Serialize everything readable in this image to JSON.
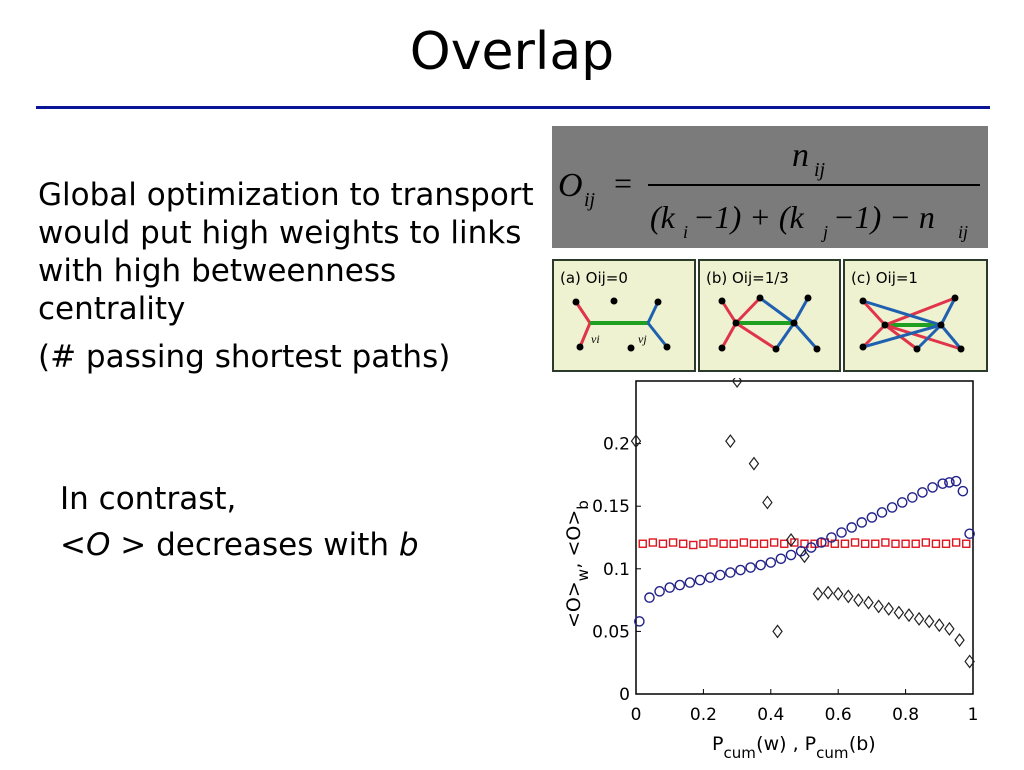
{
  "slide": {
    "title": "Overlap",
    "text": {
      "para1": "Global optimization to transport would put high weights to links with high betweenness centrality",
      "para2": "(# passing shortest paths)",
      "contrast": "In contrast,",
      "decreases_prefix": "<",
      "decreases_O": "O",
      "decreases_suffix": " > decreases with ",
      "decreases_b": "b"
    },
    "formula": {
      "lhs": "O",
      "lhs_sub": "ij",
      "eq": "=",
      "numerator": "n",
      "numerator_sub": "ij",
      "den_a": "(k",
      "den_a_sub": "i",
      "den_b": " −1) + (k",
      "den_b_sub": "j",
      "den_c": " −1) − n",
      "den_c_sub": "ij"
    },
    "panels": [
      {
        "label": "(a)  Oij=0",
        "vi": "vi",
        "vj": "vj"
      },
      {
        "label": "(b)  Oij=1/3"
      },
      {
        "label": "(c)  Oij=1"
      }
    ],
    "colors": {
      "rule": "#0a1496",
      "red_series": "#e0141e",
      "blue_series": "#22228a",
      "black_series": "#222222",
      "edge_red": "#e0344a",
      "edge_blue": "#2060b0",
      "edge_green": "#20a020"
    }
  },
  "chart_data": {
    "type": "scatter",
    "xlabel": "P_cum(w) , P_cum(b)",
    "ylabel": "<O>_w , <O>_b",
    "xlim": [
      0,
      1
    ],
    "ylim": [
      0,
      0.25
    ],
    "xticks": [
      "0",
      "0.2",
      "0.4",
      "0.6",
      "0.8",
      "1"
    ],
    "yticks": [
      "0",
      "0.05",
      "0.1",
      "0.15",
      "0.2"
    ],
    "series": [
      {
        "marker": "square",
        "color": "#e0141e",
        "x": [
          0.02,
          0.05,
          0.08,
          0.11,
          0.14,
          0.17,
          0.2,
          0.23,
          0.26,
          0.29,
          0.32,
          0.35,
          0.38,
          0.41,
          0.44,
          0.47,
          0.5,
          0.53,
          0.56,
          0.59,
          0.62,
          0.65,
          0.68,
          0.71,
          0.74,
          0.77,
          0.8,
          0.83,
          0.86,
          0.89,
          0.92,
          0.95,
          0.98
        ],
        "y": [
          0.12,
          0.121,
          0.12,
          0.121,
          0.12,
          0.119,
          0.12,
          0.121,
          0.12,
          0.12,
          0.121,
          0.12,
          0.12,
          0.121,
          0.12,
          0.121,
          0.12,
          0.12,
          0.121,
          0.12,
          0.12,
          0.121,
          0.12,
          0.12,
          0.121,
          0.12,
          0.12,
          0.12,
          0.121,
          0.12,
          0.12,
          0.121,
          0.12
        ]
      },
      {
        "marker": "circle",
        "color": "#22228a",
        "x": [
          0.01,
          0.04,
          0.07,
          0.1,
          0.13,
          0.16,
          0.19,
          0.22,
          0.25,
          0.28,
          0.31,
          0.34,
          0.37,
          0.4,
          0.43,
          0.46,
          0.49,
          0.52,
          0.55,
          0.58,
          0.61,
          0.64,
          0.67,
          0.7,
          0.73,
          0.76,
          0.79,
          0.82,
          0.85,
          0.88,
          0.91,
          0.93,
          0.95,
          0.97,
          0.99
        ],
        "y": [
          0.058,
          0.077,
          0.082,
          0.085,
          0.087,
          0.089,
          0.091,
          0.093,
          0.095,
          0.097,
          0.099,
          0.101,
          0.103,
          0.105,
          0.108,
          0.111,
          0.114,
          0.117,
          0.121,
          0.125,
          0.129,
          0.133,
          0.137,
          0.141,
          0.145,
          0.149,
          0.153,
          0.157,
          0.161,
          0.165,
          0.168,
          0.169,
          0.17,
          0.162,
          0.128
        ]
      },
      {
        "marker": "diamond",
        "color": "#222222",
        "x": [
          0.0,
          0.28,
          0.3,
          0.35,
          0.39,
          0.42,
          0.46,
          0.5,
          0.54,
          0.57,
          0.6,
          0.63,
          0.66,
          0.69,
          0.72,
          0.75,
          0.78,
          0.81,
          0.84,
          0.87,
          0.9,
          0.93,
          0.96,
          0.99
        ],
        "y": [
          0.202,
          0.202,
          0.25,
          0.184,
          0.153,
          0.05,
          0.123,
          0.11,
          0.08,
          0.081,
          0.08,
          0.078,
          0.075,
          0.073,
          0.07,
          0.068,
          0.065,
          0.063,
          0.06,
          0.058,
          0.055,
          0.052,
          0.043,
          0.026
        ]
      }
    ]
  }
}
